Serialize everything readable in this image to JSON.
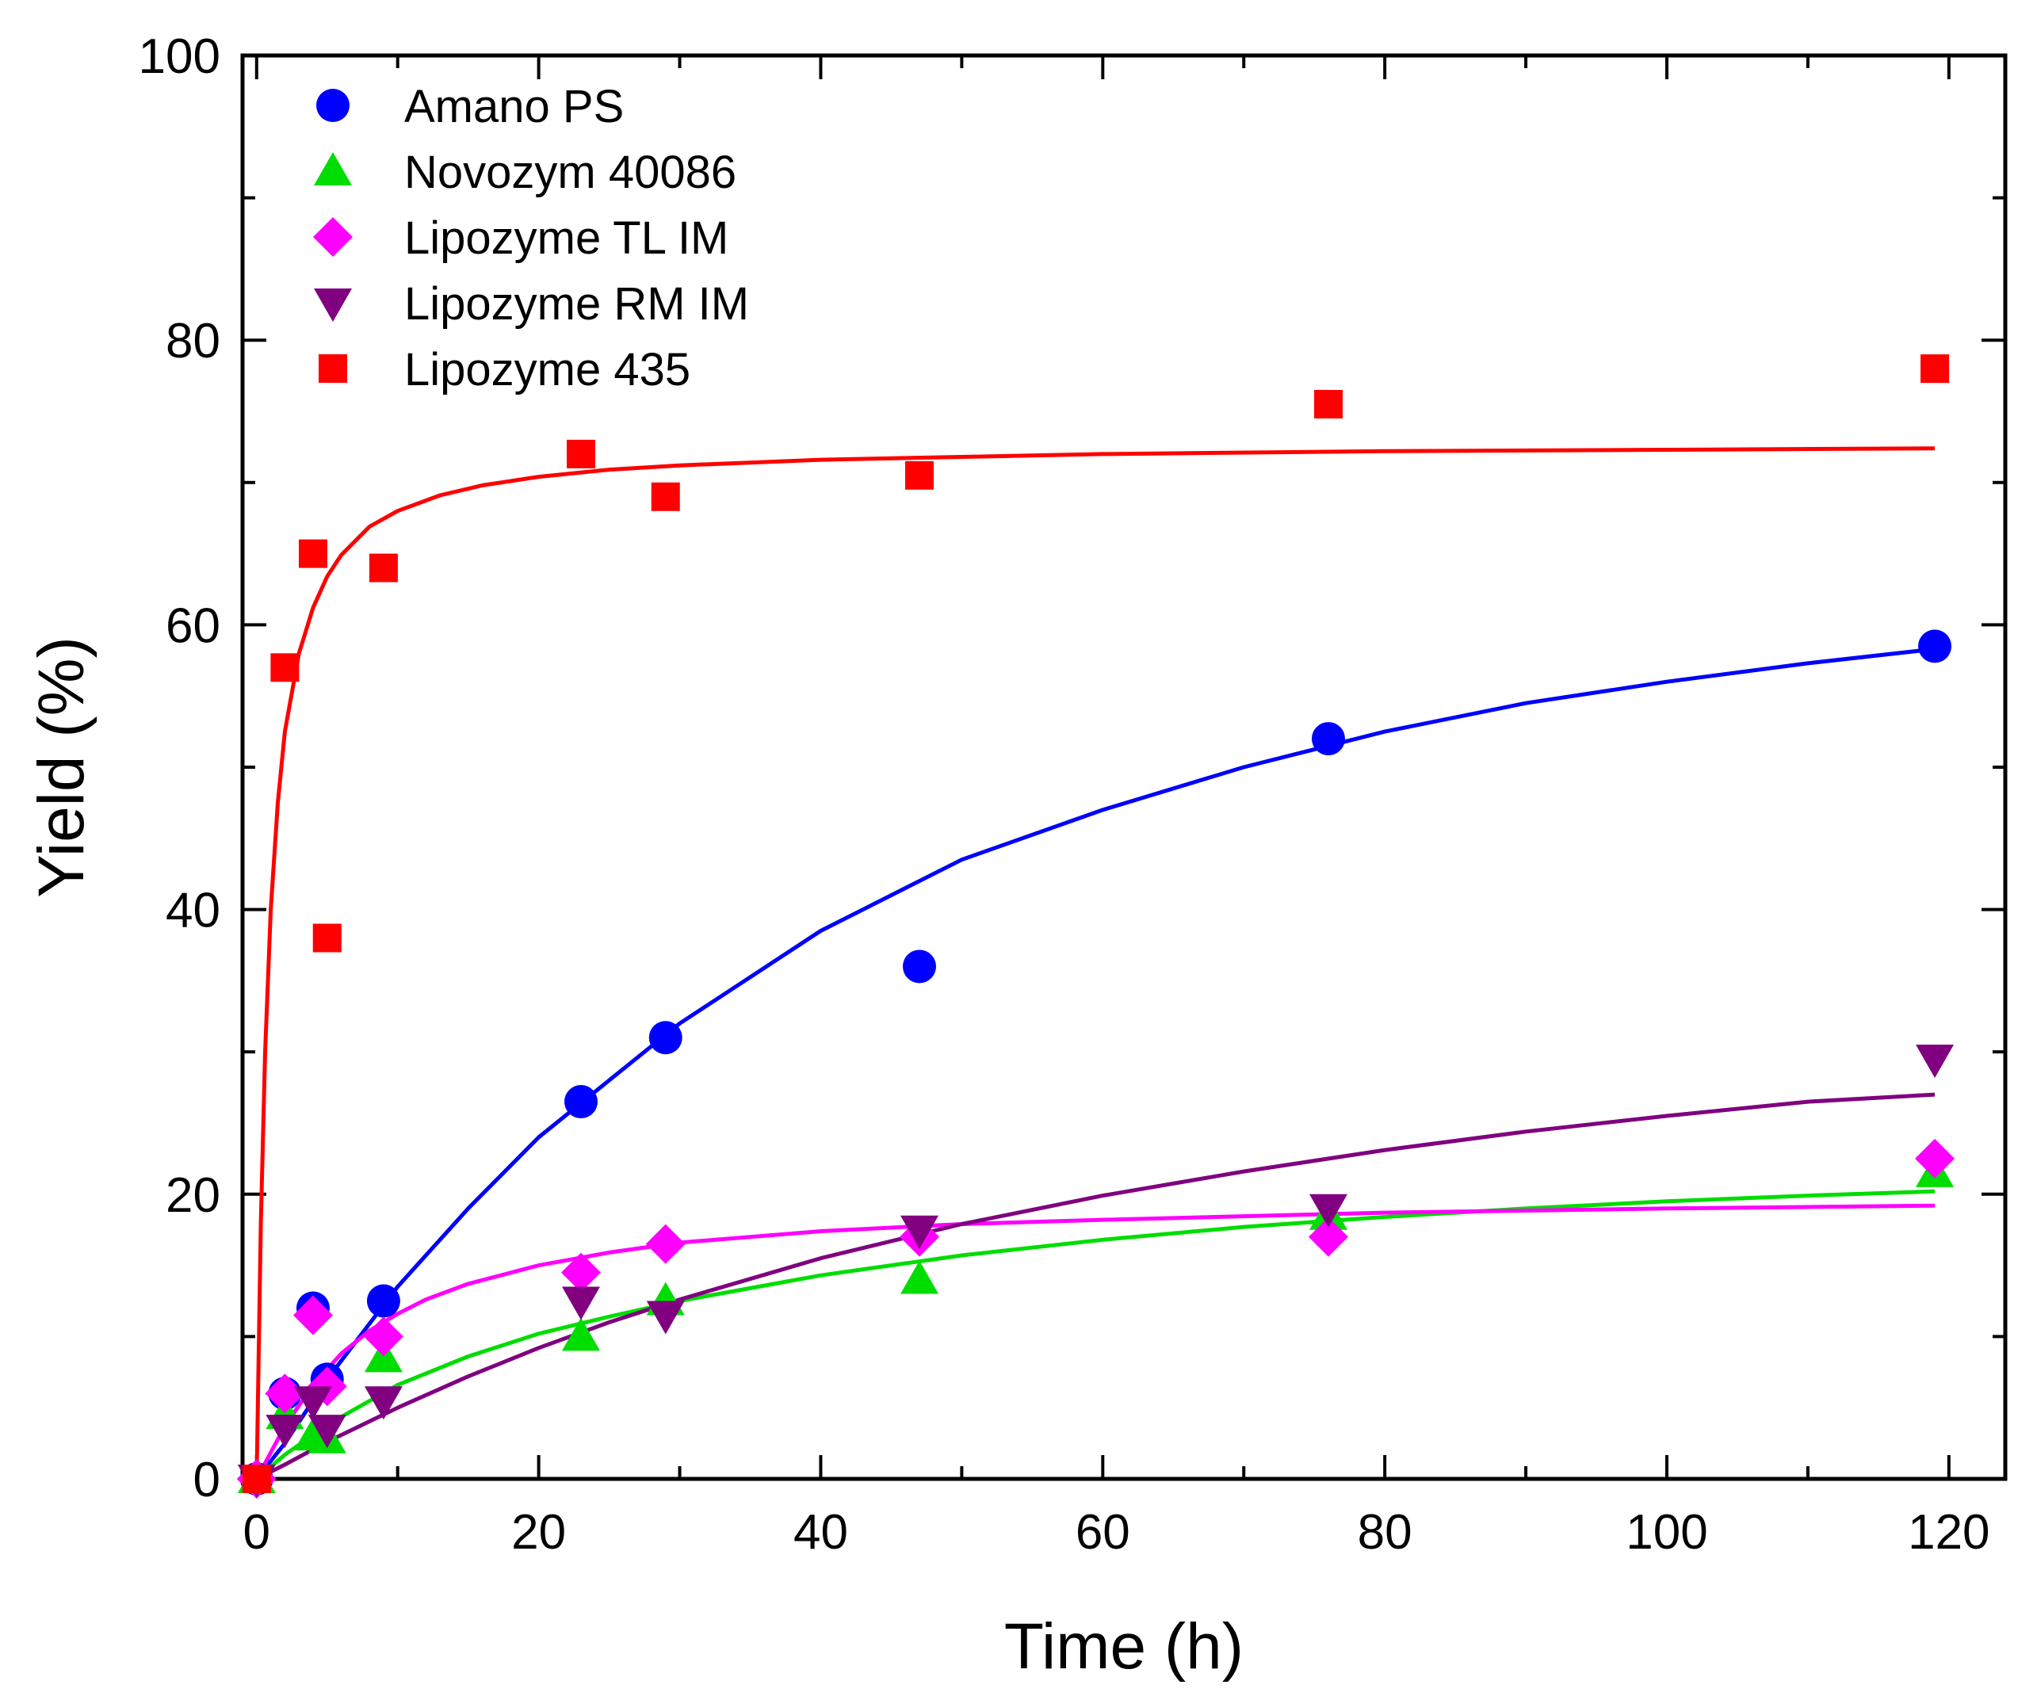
{
  "chart_data": {
    "type": "scatter",
    "title": "",
    "xlabel": "Time (h)",
    "ylabel": "Yield (%)",
    "xlim": [
      -1,
      124
    ],
    "ylim": [
      0,
      100
    ],
    "xticks": [
      0,
      20,
      40,
      60,
      80,
      100,
      120
    ],
    "yticks": [
      0,
      20,
      40,
      60,
      80,
      100
    ],
    "x_minor_step": 10,
    "y_minor_step": 10,
    "grid": false,
    "legend_position": "top-left",
    "series": [
      {
        "name": "Amano PS",
        "marker": "circle",
        "color": "#0000FF",
        "x": [
          0,
          2,
          4,
          5,
          9,
          23,
          29,
          47,
          76,
          119
        ],
        "y": [
          0,
          6,
          12,
          7,
          12.5,
          26.5,
          31,
          36,
          52,
          58.5
        ],
        "fit_x": [
          0,
          2,
          5,
          10,
          15,
          20,
          25,
          30,
          40,
          50,
          60,
          70,
          80,
          90,
          100,
          110,
          119
        ],
        "fit_y": [
          0,
          2.5,
          7,
          13.5,
          19,
          24,
          28,
          32,
          38.5,
          43.5,
          47,
          50,
          52.5,
          54.5,
          56,
          57.3,
          58.3
        ]
      },
      {
        "name": "Novozym 40086",
        "marker": "triangle-up",
        "color": "#00DD00",
        "x": [
          0,
          2,
          4,
          5,
          9,
          23,
          29,
          47,
          76,
          119
        ],
        "y": [
          0,
          4.5,
          3,
          2.8,
          8.5,
          10,
          12.5,
          14,
          18.5,
          21.5
        ],
        "fit_x": [
          0,
          2,
          5,
          10,
          15,
          20,
          25,
          30,
          40,
          50,
          60,
          70,
          80,
          90,
          100,
          110,
          119
        ],
        "fit_y": [
          0,
          1.7,
          3.8,
          6.6,
          8.6,
          10.2,
          11.4,
          12.5,
          14.3,
          15.7,
          16.8,
          17.7,
          18.4,
          19.0,
          19.5,
          19.9,
          20.2
        ]
      },
      {
        "name": "Lipozyme TL IM",
        "marker": "diamond",
        "color": "#FF00FF",
        "x": [
          0,
          2,
          4,
          5,
          9,
          23,
          29,
          47,
          76,
          119
        ],
        "y": [
          0,
          6,
          11.5,
          6.5,
          10,
          14.5,
          16.5,
          17,
          17,
          22.5
        ],
        "fit_x": [
          0,
          2,
          4,
          6,
          8,
          10,
          12,
          15,
          20,
          25,
          30,
          40,
          50,
          60,
          80,
          100,
          119
        ],
        "fit_y": [
          0,
          3.7,
          6.6,
          8.8,
          10.4,
          11.6,
          12.6,
          13.7,
          15.0,
          15.9,
          16.6,
          17.4,
          17.9,
          18.2,
          18.7,
          19.0,
          19.2
        ]
      },
      {
        "name": "Lipozyme RM IM",
        "marker": "triangle-down",
        "color": "#800080",
        "x": [
          0,
          2,
          4,
          5,
          9,
          23,
          29,
          47,
          76,
          119
        ],
        "y": [
          0,
          3.5,
          5.5,
          3.5,
          5.5,
          12.5,
          11.5,
          17.5,
          19,
          29.5
        ],
        "fit_x": [
          0,
          2,
          5,
          10,
          15,
          20,
          25,
          30,
          40,
          50,
          60,
          70,
          80,
          90,
          100,
          110,
          119
        ],
        "fit_y": [
          0,
          1.0,
          2.6,
          5.0,
          7.2,
          9.2,
          11.0,
          12.6,
          15.5,
          17.9,
          19.9,
          21.6,
          23.1,
          24.4,
          25.5,
          26.5,
          27.0
        ]
      },
      {
        "name": "Lipozyme 435",
        "marker": "square",
        "color": "#FF0000",
        "x": [
          0,
          2,
          4,
          5,
          9,
          23,
          29,
          47,
          76,
          119
        ],
        "y": [
          0,
          57,
          65,
          38,
          64,
          72,
          69,
          70.5,
          75.5,
          78
        ],
        "fit_x": [
          0,
          0.3,
          0.6,
          1,
          1.5,
          2,
          3,
          4,
          5,
          6,
          8,
          10,
          13,
          16,
          20,
          25,
          30,
          40,
          50,
          60,
          80,
          100,
          119
        ],
        "fit_y": [
          0,
          18,
          30,
          40,
          47.5,
          52.5,
          58,
          61.2,
          63.4,
          64.9,
          66.9,
          68.0,
          69.1,
          69.8,
          70.4,
          70.9,
          71.2,
          71.6,
          71.8,
          72.0,
          72.2,
          72.3,
          72.4
        ]
      }
    ]
  }
}
